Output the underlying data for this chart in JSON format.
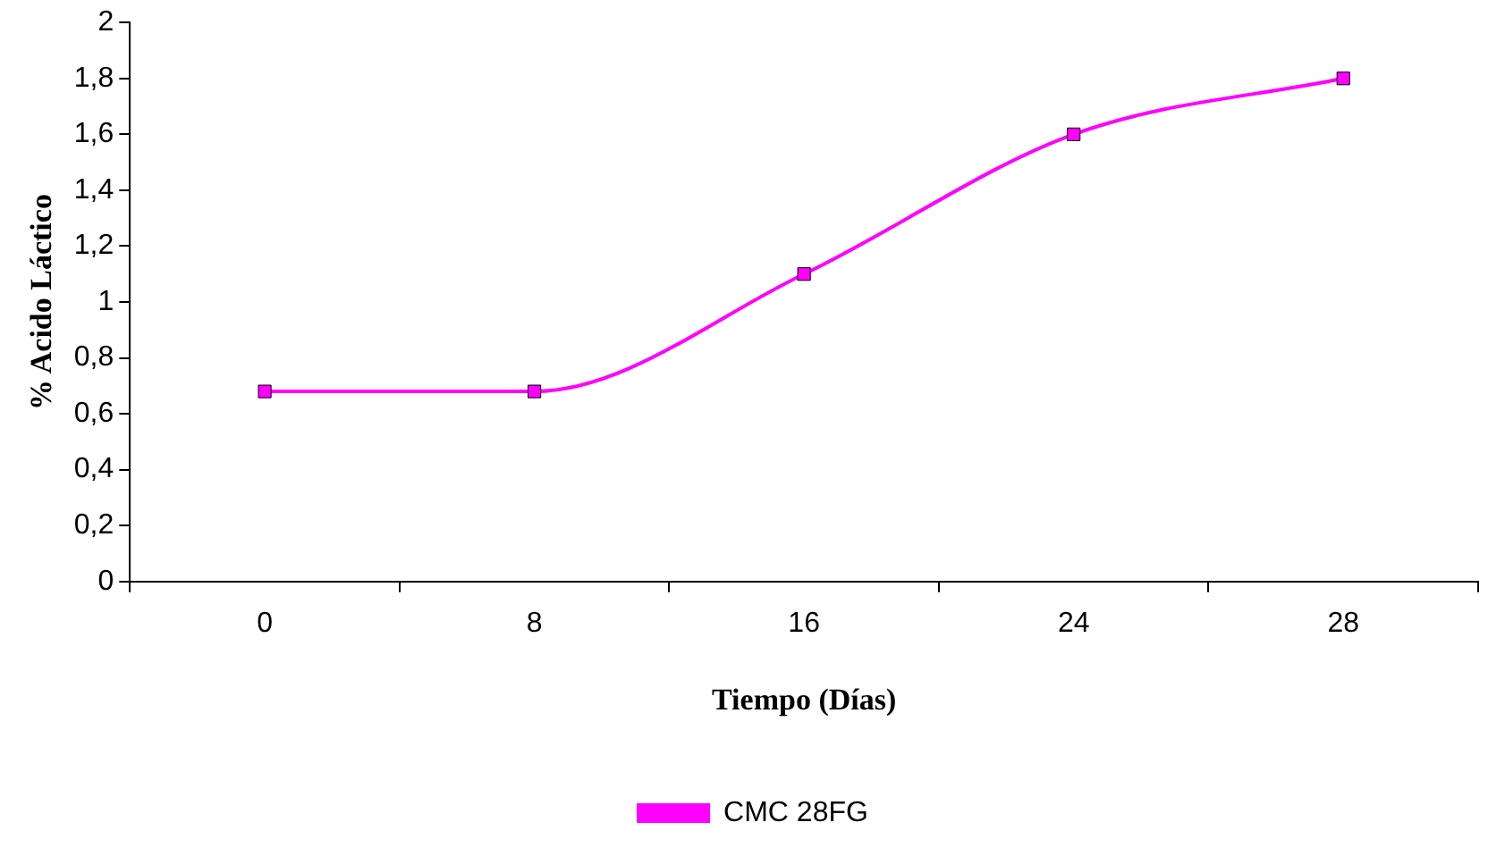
{
  "chart_data": {
    "type": "line",
    "xlabel": "Tiempo (Días)",
    "ylabel": "% Acido Láctico",
    "categories": [
      "0",
      "8",
      "16",
      "24",
      "28"
    ],
    "series": [
      {
        "name": "CMC 28FG",
        "color": "#ff00ff",
        "values": [
          0.68,
          0.68,
          1.1,
          1.6,
          1.8
        ]
      }
    ],
    "ylim": [
      0,
      2
    ],
    "yticks": [
      0,
      {
        "value": 0.2,
        "label": "0,2"
      },
      {
        "value": 0.4,
        "label": "0,4"
      },
      {
        "value": 0.6,
        "label": "0,6"
      },
      {
        "value": 0.8,
        "label": "0,8"
      },
      1,
      {
        "value": 1.2,
        "label": "1,2"
      },
      {
        "value": 1.4,
        "label": "1,4"
      },
      {
        "value": 1.6,
        "label": "1,6"
      },
      {
        "value": 1.8,
        "label": "1,8"
      },
      2
    ],
    "grid": false,
    "legend": "bottom",
    "marker": "square",
    "line_style": "solid"
  }
}
